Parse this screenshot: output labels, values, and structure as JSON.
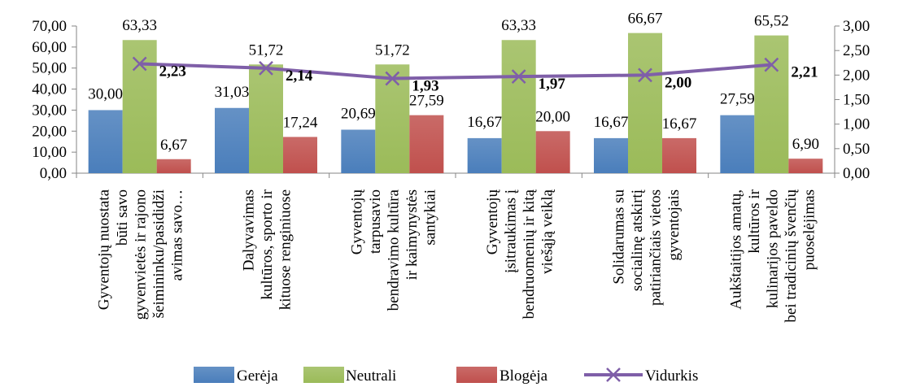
{
  "chart_data": {
    "type": "bar",
    "categories": [
      [
        "Gyventojų nuostata",
        "būti savo",
        "gyvenvietės ir rajono",
        "šeimininku/pasididži",
        "avimas savo…"
      ],
      [
        "Dalyvavimas",
        "kultūros, sporto ir",
        "kituose renginiuose"
      ],
      [
        "Gyventojų",
        "tarpusavio",
        "bendravimo kultūra",
        "ir kaimynystės",
        "santykiai"
      ],
      [
        "Gyventojų",
        "įsitraukimas į",
        "bendruomenių ir kitą",
        "viešąją veiklą"
      ],
      [
        "Solidarumas su",
        "socialinę atskirtį",
        "patiriančiais vietos",
        "gyventojais"
      ],
      [
        "Aukštaitijos amatų,",
        "kultūros ir",
        "kulinarijos paveldo",
        "bei tradicinių švenčių",
        "puoselėjimas"
      ]
    ],
    "series": [
      {
        "name": "Gerėja",
        "type": "bar",
        "axis": "left",
        "color": "#4a7ebb",
        "values": [
          30.0,
          31.03,
          20.69,
          16.67,
          16.67,
          27.59
        ],
        "labels": [
          "30,00",
          "31,03",
          "20,69",
          "16,67",
          "16,67",
          "27,59"
        ]
      },
      {
        "name": "Neutrali",
        "type": "bar",
        "axis": "left",
        "color": "#9bbb59",
        "values": [
          63.33,
          51.72,
          51.72,
          63.33,
          66.67,
          65.52
        ],
        "labels": [
          "63,33",
          "51,72",
          "51,72",
          "63,33",
          "66,67",
          "65,52"
        ]
      },
      {
        "name": "Blogėja",
        "type": "bar",
        "axis": "left",
        "color": "#c0504d",
        "values": [
          6.67,
          17.24,
          27.59,
          20.0,
          16.67,
          6.9
        ],
        "labels": [
          "6,67",
          "17,24",
          "27,59",
          "20,00",
          "16,67",
          "6,90"
        ]
      },
      {
        "name": "Vidurkis",
        "type": "line",
        "axis": "right",
        "color": "#7f5fa8",
        "values": [
          2.23,
          2.14,
          1.93,
          1.97,
          2.0,
          2.21
        ],
        "labels": [
          "2,23",
          "2,14",
          "1,93",
          "1,97",
          "2,00",
          "2,21"
        ]
      }
    ],
    "y_left": {
      "range": [
        0,
        70
      ],
      "ticks": [
        0,
        10,
        20,
        30,
        40,
        50,
        60,
        70
      ],
      "tick_labels": [
        "0,00",
        "10,00",
        "20,00",
        "30,00",
        "40,00",
        "50,00",
        "60,00",
        "70,00"
      ]
    },
    "y_right": {
      "range": [
        0,
        3
      ],
      "ticks": [
        0,
        0.5,
        1,
        1.5,
        2,
        2.5,
        3
      ],
      "tick_labels": [
        "0,00",
        "0,50",
        "1,00",
        "1,50",
        "2,00",
        "2,50",
        "3,00"
      ]
    },
    "grid": false,
    "legend": "bottom",
    "title": "",
    "xlabel": "",
    "ylabel": ""
  }
}
